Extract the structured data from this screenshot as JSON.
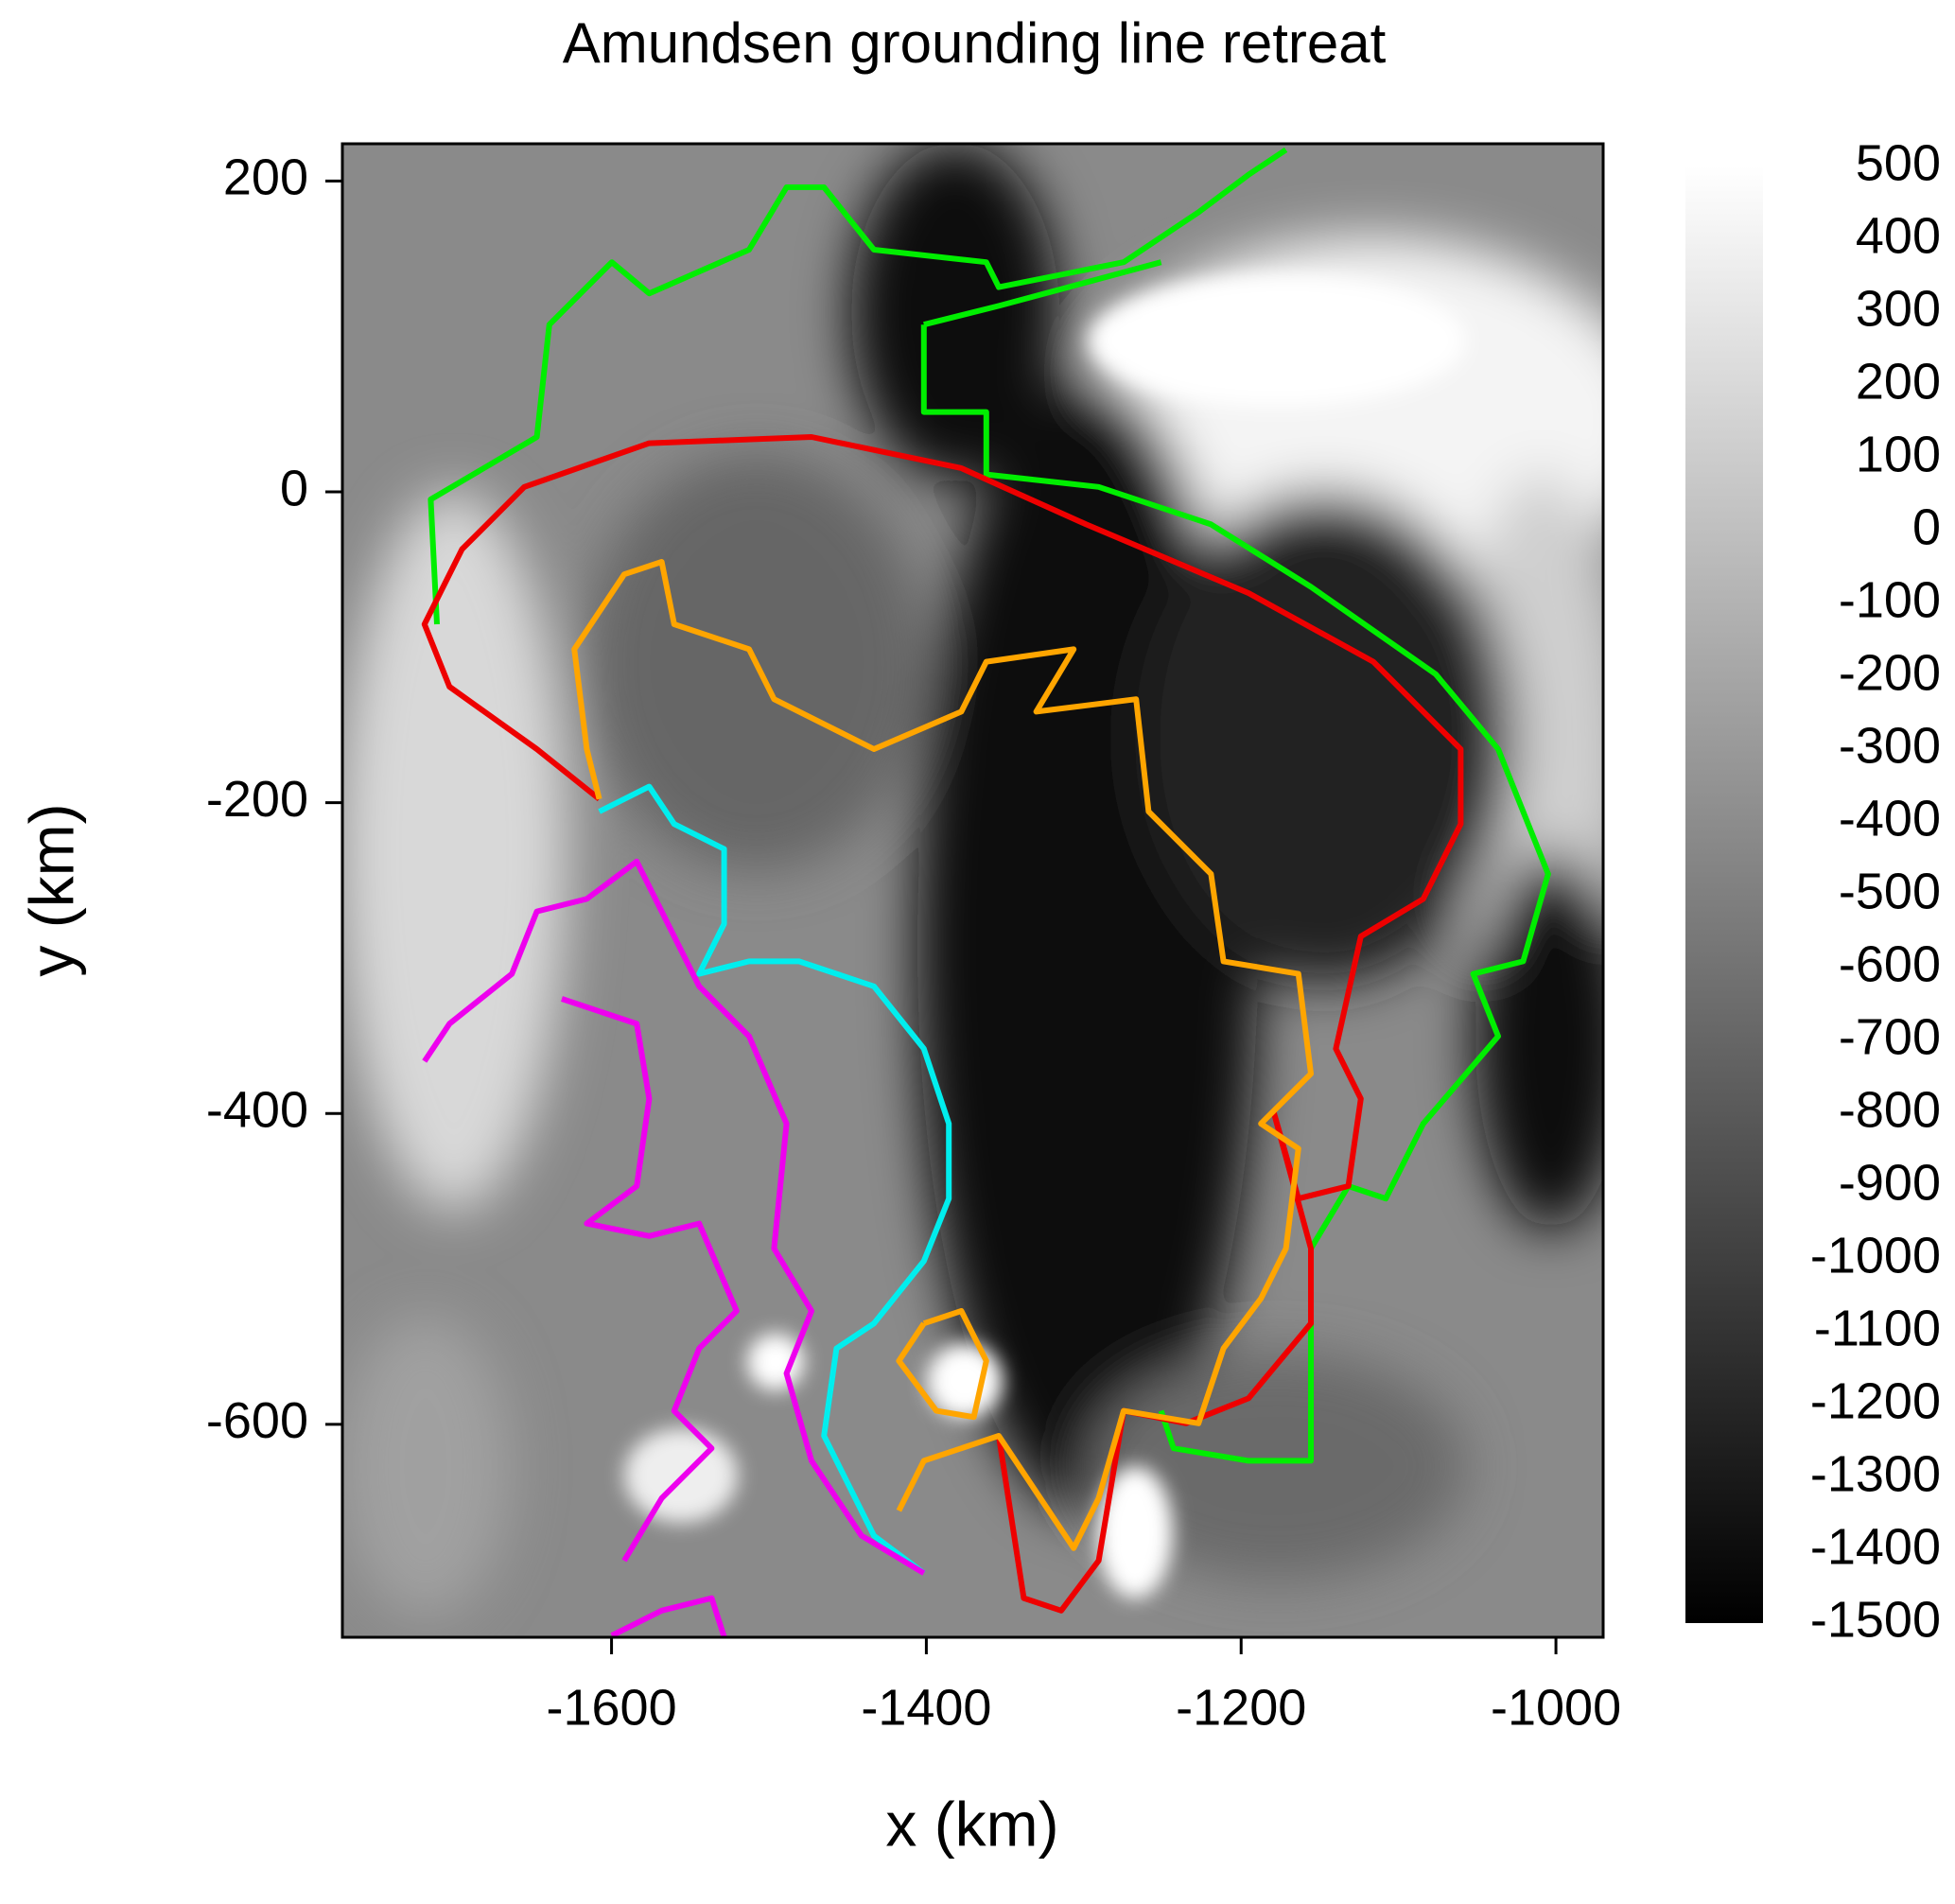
{
  "chart_data": {
    "type": "heatmap",
    "title": "Amundsen grounding line retreat",
    "xlabel": "x (km)",
    "ylabel": "y (km)",
    "xlim": [
      -1771,
      -970
    ],
    "ylim": [
      -737,
      224
    ],
    "xticks": [
      -1600,
      -1400,
      -1200,
      -1000
    ],
    "yticks": [
      200,
      0,
      -200,
      -400,
      -600
    ],
    "colorbar": {
      "lim": [
        -1500,
        500
      ],
      "ticks": [
        500,
        400,
        300,
        200,
        100,
        0,
        -100,
        -200,
        -300,
        -400,
        -500,
        -600,
        -700,
        -800,
        -900,
        -1000,
        -1100,
        -1200,
        -1300,
        -1400,
        -1500
      ],
      "colors": [
        "#000000",
        "#ffffff"
      ]
    },
    "contour_colors": [
      "#00ee00",
      "#ee0000",
      "#ffa500",
      "#00eeee",
      "#ee00ee"
    ]
  }
}
